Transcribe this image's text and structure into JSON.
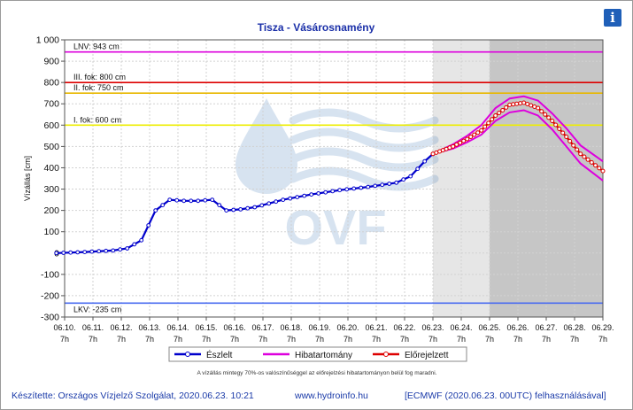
{
  "chart_data": {
    "type": "line",
    "title": "Tisza - Vásárosnamény",
    "ylabel": "Vízállás [cm]",
    "ylim": [
      -300,
      1000
    ],
    "yticks": [
      -300,
      -200,
      -100,
      0,
      100,
      200,
      300,
      400,
      500,
      600,
      700,
      800,
      900,
      1000
    ],
    "ytick_labels": [
      "-300",
      "-200",
      "-100",
      "0",
      "100",
      "200",
      "300",
      "400",
      "500",
      "600",
      "700",
      "800",
      "900",
      "1 000"
    ],
    "x_start": "2020-06-10 07:00",
    "x_end": "2020-06-29 07:00",
    "x_ticks": [
      "06.10.",
      "06.11.",
      "06.12.",
      "06.13.",
      "06.14.",
      "06.15.",
      "06.16.",
      "06.17.",
      "06.18.",
      "06.19.",
      "06.20.",
      "06.21.",
      "06.22.",
      "06.23.",
      "06.24.",
      "06.25.",
      "06.26.",
      "06.27.",
      "06.28.",
      "06.29."
    ],
    "x_tick_time": "7h",
    "thresholds": [
      {
        "label": "LNV: 943 cm",
        "value": 943,
        "color": "#dd00dd"
      },
      {
        "label": "III. fok: 800 cm",
        "value": 800,
        "color": "#dd0000"
      },
      {
        "label": "II. fok: 750 cm",
        "value": 750,
        "color": "#e8b800"
      },
      {
        "label": "I. fok: 600 cm",
        "value": 600,
        "color": "#eeee00"
      },
      {
        "label": "LKV: -235 cm",
        "value": -235,
        "color": "#4a6cf0"
      }
    ],
    "series": [
      {
        "name": "Észlelt",
        "color": "#0000cc",
        "x": [
          "2020-06-10",
          "2020-06-11",
          "2020-06-12",
          "2020-06-12 12:00",
          "2020-06-13",
          "2020-06-13 12:00",
          "2020-06-14",
          "2020-06-14 12:00",
          "2020-06-15",
          "2020-06-15 12:00",
          "2020-06-16",
          "2020-06-16 12:00",
          "2020-06-17",
          "2020-06-18",
          "2020-06-19",
          "2020-06-20",
          "2020-06-21",
          "2020-06-22",
          "2020-06-22 12:00",
          "2020-06-23",
          "2020-06-23 07:00"
        ],
        "y": [
          0,
          5,
          12,
          22,
          60,
          200,
          250,
          245,
          245,
          250,
          200,
          205,
          215,
          250,
          275,
          295,
          310,
          330,
          360,
          430,
          465
        ]
      },
      {
        "name": "Előrejelzett",
        "color": "#dd0000",
        "x": [
          "2020-06-23 07:00",
          "2020-06-24",
          "2020-06-24 12:00",
          "2020-06-25",
          "2020-06-25 12:00",
          "2020-06-26",
          "2020-06-26 12:00",
          "2020-06-27",
          "2020-06-27 12:00",
          "2020-06-28",
          "2020-06-28 12:00",
          "2020-06-29 07:00"
        ],
        "y": [
          465,
          500,
          535,
          575,
          645,
          695,
          705,
          680,
          620,
          545,
          465,
          385
        ]
      },
      {
        "name": "Hibatartomány",
        "color": "#dd00dd",
        "upper": [
          465,
          510,
          550,
          600,
          680,
          725,
          735,
          715,
          655,
          585,
          505,
          430
        ],
        "lower": [
          465,
          490,
          520,
          555,
          620,
          660,
          670,
          645,
          580,
          500,
          420,
          340
        ]
      }
    ],
    "shaded_regions": [
      {
        "from": "2020-06-23 07:00",
        "to": "2020-06-25 07:00",
        "color": "#e6e6e6"
      },
      {
        "from": "2020-06-25 07:00",
        "to": "2020-06-29 07:00",
        "color": "#c6c6c6"
      }
    ],
    "watermark": "OVF",
    "legend": [
      "Észlelt",
      "Hibatartomány",
      "Előrejelzett"
    ],
    "legend_position": "bottom",
    "note": "A vízállás mintegy 70%-os valószínűséggel az előrejelzési hibatartományon belül fog maradni.",
    "grid": true
  },
  "footer": {
    "author": "Készítette: Országos Vízjelző Szolgálat, 2020.06.23. 10:21",
    "website": "www.hydroinfo.hu",
    "model": "[ECMWF (2020.06.23. 00UTC) felhasználásával]"
  },
  "info_icon": "i"
}
